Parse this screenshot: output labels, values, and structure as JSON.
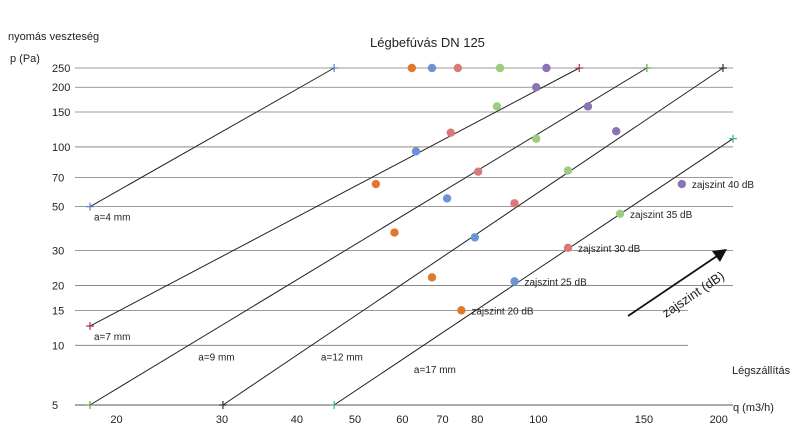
{
  "chart_data": {
    "type": "line",
    "title": "Légbefúvás DN 125",
    "ylabel": "nyomás veszteség",
    "y_unit_label": "p (Pa)",
    "xlabel_top": "Légszállítás",
    "xlabel": "q (m3/h)",
    "y_ticks": [
      "250",
      "200",
      "150",
      "100",
      "70",
      "50",
      "30",
      "20",
      "15",
      "10",
      "5"
    ],
    "x_ticks": [
      "20",
      "30",
      "40",
      "50",
      "60",
      "70",
      "80",
      "100",
      "150",
      "200"
    ],
    "series": [
      {
        "name": "a=4 mm",
        "points": [
          [
            18,
            50
          ],
          [
            46,
            250
          ]
        ]
      },
      {
        "name": "a=7 mm",
        "points": [
          [
            18,
            12.5
          ],
          [
            118,
            250
          ]
        ]
      },
      {
        "name": "a=9 mm",
        "points": [
          [
            18,
            5
          ],
          [
            153,
            250
          ]
        ]
      },
      {
        "name": "a=12 mm",
        "points": [
          [
            30,
            5
          ],
          [
            205,
            250
          ]
        ]
      },
      {
        "name": "a=17 mm",
        "points": [
          [
            46,
            5
          ],
          [
            213,
            110
          ]
        ]
      }
    ],
    "noise_levels": [
      {
        "label": "zajszint 20 dB",
        "color": "#e0782a",
        "points": [
          [
            62,
            250
          ],
          [
            54,
            65
          ],
          [
            58,
            37
          ],
          [
            67,
            22
          ],
          [
            75,
            15
          ]
        ]
      },
      {
        "label": "zajszint 25 dB",
        "color": "#6b93d8",
        "points": [
          [
            67,
            250
          ],
          [
            63,
            95
          ],
          [
            71,
            55
          ],
          [
            79,
            35
          ],
          [
            92,
            21
          ]
        ]
      },
      {
        "label": "zajszint 30 dB",
        "color": "#d87a7a",
        "points": [
          [
            74,
            250
          ],
          [
            72,
            118
          ],
          [
            80,
            75
          ],
          [
            92,
            52
          ],
          [
            113,
            31
          ]
        ]
      },
      {
        "label": "zajszint 35 dB",
        "color": "#9ccc7d",
        "points": [
          [
            87,
            250
          ],
          [
            86,
            160
          ],
          [
            100,
            110
          ],
          [
            113,
            76
          ],
          [
            138,
            46
          ]
        ]
      },
      {
        "label": "zajszint 40 dB",
        "color": "#8b73b8",
        "points": [
          [
            104,
            250
          ],
          [
            100,
            200
          ],
          [
            122,
            160
          ],
          [
            136,
            120
          ],
          [
            175,
            65
          ]
        ]
      }
    ],
    "arrow_label": "zajszint (dB)"
  }
}
